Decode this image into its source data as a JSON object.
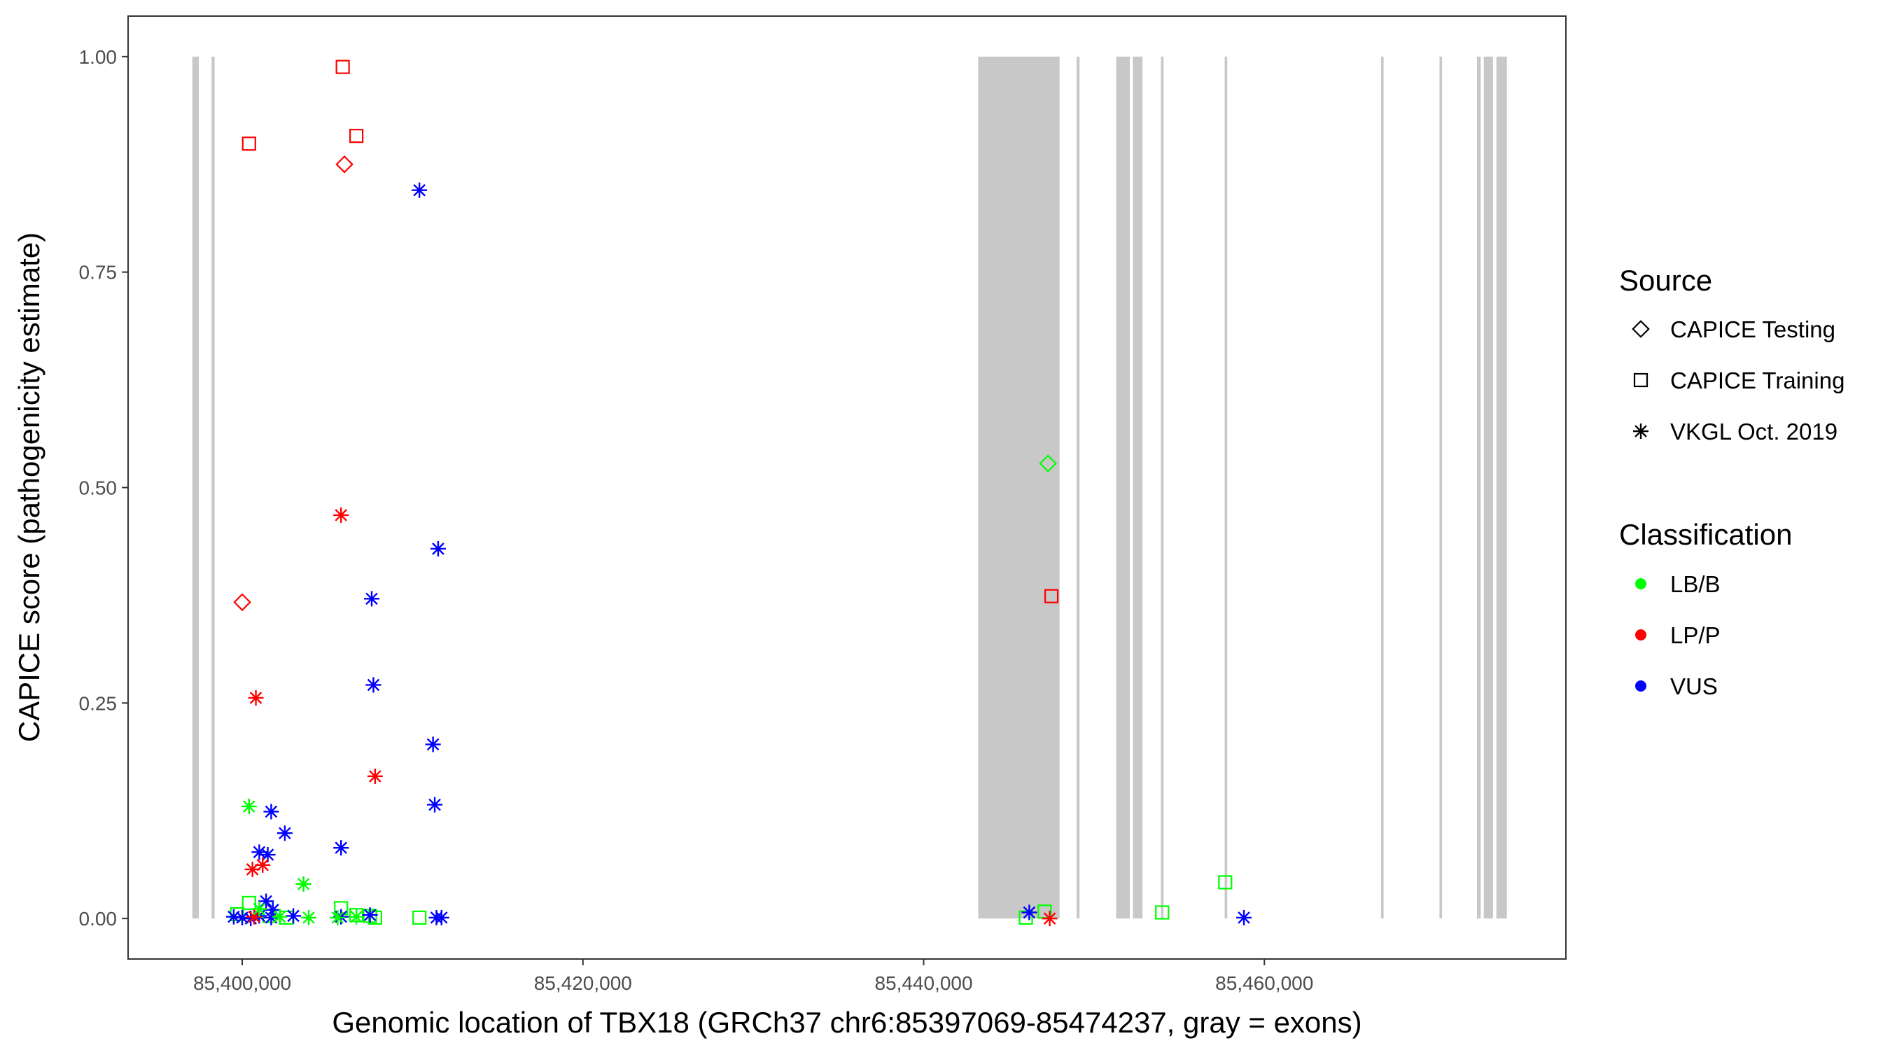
{
  "chart_data": {
    "type": "scatter",
    "title": "",
    "xlabel": "Genomic location of TBX18 (GRCh37 chr6:85397069-85474237, gray = exons)",
    "ylabel": "CAPICE score (pathogenicity estimate)",
    "xlim": [
      85393300,
      85477700
    ],
    "ylim": [
      -0.047,
      1.047
    ],
    "x_ticks": [
      85400000,
      85420000,
      85440000,
      85460000
    ],
    "x_tick_labels": [
      "85,400,000",
      "85,420,000",
      "85,440,000",
      "85,460,000"
    ],
    "y_ticks": [
      0,
      0.25,
      0.5,
      0.75,
      1.0
    ],
    "y_tick_labels": [
      "0.00",
      "0.25",
      "0.50",
      "0.75",
      "1.00"
    ],
    "grid": false,
    "exons": [
      {
        "start": 85397069,
        "end": 85397450
      },
      {
        "start": 85398200,
        "end": 85398380
      },
      {
        "start": 85443200,
        "end": 85447980
      },
      {
        "start": 85448980,
        "end": 85449150
      },
      {
        "start": 85451300,
        "end": 85452100
      },
      {
        "start": 85452280,
        "end": 85452850
      },
      {
        "start": 85453930,
        "end": 85454080
      },
      {
        "start": 85457670,
        "end": 85457820
      },
      {
        "start": 85466850,
        "end": 85467000
      },
      {
        "start": 85470280,
        "end": 85470430
      },
      {
        "start": 85472480,
        "end": 85472700
      },
      {
        "start": 85472880,
        "end": 85473420
      },
      {
        "start": 85473620,
        "end": 85474237
      }
    ],
    "series": [
      {
        "source": "CAPICE Testing",
        "classification": "LP/P",
        "points": [
          [
            85406000,
            0.875
          ],
          [
            85400000,
            0.367
          ]
        ]
      },
      {
        "source": "CAPICE Testing",
        "classification": "LB/B",
        "points": [
          [
            85447300,
            0.528
          ]
        ]
      },
      {
        "source": "CAPICE Training",
        "classification": "LP/P",
        "points": [
          [
            85405900,
            0.988
          ],
          [
            85406700,
            0.908
          ],
          [
            85400400,
            0.899
          ],
          [
            85447500,
            0.374
          ]
        ]
      },
      {
        "source": "CAPICE Training",
        "classification": "LB/B",
        "points": [
          [
            85400400,
            0.018
          ],
          [
            85399700,
            0.005
          ],
          [
            85401600,
            0.003
          ],
          [
            85402600,
            0.001
          ],
          [
            85405800,
            0.012
          ],
          [
            85406700,
            0.004
          ],
          [
            85407500,
            0.003
          ],
          [
            85407800,
            0.001
          ],
          [
            85410400,
            0.001
          ],
          [
            85446000,
            0.001
          ],
          [
            85447100,
            0.008
          ],
          [
            85454000,
            0.007
          ],
          [
            85457700,
            0.042
          ]
        ]
      },
      {
        "source": "VKGL Oct. 2019",
        "classification": "VUS",
        "points": [
          [
            85410400,
            0.845
          ],
          [
            85411500,
            0.429
          ],
          [
            85407600,
            0.371
          ],
          [
            85407700,
            0.271
          ],
          [
            85411200,
            0.202
          ],
          [
            85411300,
            0.132
          ],
          [
            85401700,
            0.124
          ],
          [
            85402500,
            0.099
          ],
          [
            85405800,
            0.082
          ],
          [
            85401000,
            0.077
          ],
          [
            85401500,
            0.074
          ],
          [
            85401400,
            0.02
          ],
          [
            85401800,
            0.01
          ],
          [
            85399500,
            0.002
          ],
          [
            85400000,
            0.001
          ],
          [
            85400500,
            0.0
          ],
          [
            85401000,
            0.003
          ],
          [
            85401700,
            0.001
          ],
          [
            85403000,
            0.003
          ],
          [
            85405800,
            0.002
          ],
          [
            85407500,
            0.004
          ],
          [
            85411400,
            0.001
          ],
          [
            85411700,
            0.001
          ],
          [
            85446200,
            0.007
          ],
          [
            85458800,
            0.001
          ]
        ]
      },
      {
        "source": "VKGL Oct. 2019",
        "classification": "LP/P",
        "points": [
          [
            85405800,
            0.468
          ],
          [
            85407800,
            0.165
          ],
          [
            85400800,
            0.256
          ],
          [
            85400600,
            0.057
          ],
          [
            85401200,
            0.062
          ],
          [
            85400700,
            0.002
          ],
          [
            85447400,
            0.0
          ]
        ]
      },
      {
        "source": "VKGL Oct. 2019",
        "classification": "LB/B",
        "points": [
          [
            85400400,
            0.13
          ],
          [
            85403600,
            0.04
          ],
          [
            85401000,
            0.011
          ],
          [
            85402200,
            0.002
          ],
          [
            85403900,
            0.001
          ],
          [
            85406700,
            0.002
          ],
          [
            85405600,
            0.001
          ]
        ]
      }
    ],
    "legend": {
      "placement": "right",
      "source_title": "Source",
      "source_entries": [
        {
          "label": "CAPICE Testing",
          "shape": "diamond"
        },
        {
          "label": "CAPICE Training",
          "shape": "square"
        },
        {
          "label": "VKGL Oct. 2019",
          "shape": "asterisk"
        }
      ],
      "classification_title": "Classification",
      "classification_entries": [
        {
          "label": "LB/B",
          "color": "#00ff00"
        },
        {
          "label": "LP/P",
          "color": "#ff0000"
        },
        {
          "label": "VUS",
          "color": "#0000ff"
        }
      ]
    },
    "exon_color": "#c8c8c8"
  }
}
